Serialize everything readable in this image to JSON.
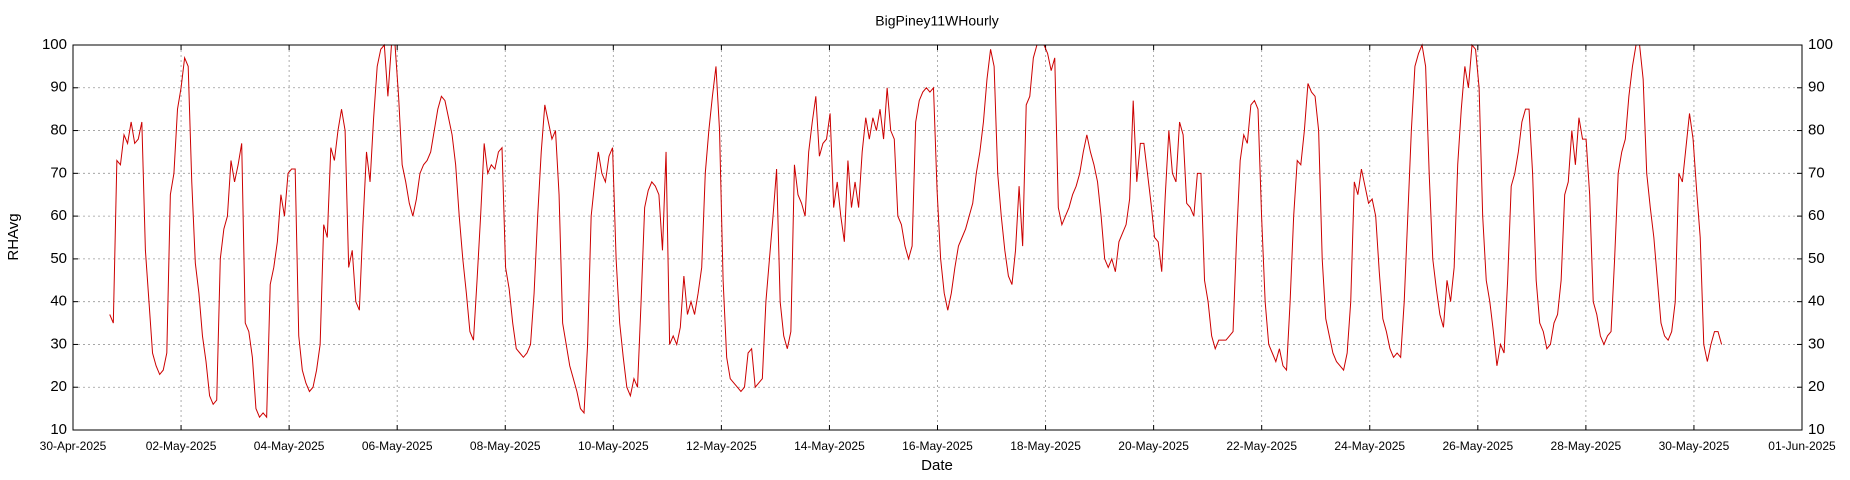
{
  "chart_data": {
    "type": "line",
    "title": "BigPiney11WHourly",
    "x_label": "Date",
    "y_label": "RHAvg",
    "color": "#cc0000",
    "grid": true,
    "xlim": [
      0,
      32
    ],
    "xticks": [
      {
        "value": 0,
        "label": "30-Apr-2025"
      },
      {
        "value": 2,
        "label": "02-May-2025"
      },
      {
        "value": 4,
        "label": "04-May-2025"
      },
      {
        "value": 6,
        "label": "06-May-2025"
      },
      {
        "value": 8,
        "label": "08-May-2025"
      },
      {
        "value": 10,
        "label": "10-May-2025"
      },
      {
        "value": 12,
        "label": "12-May-2025"
      },
      {
        "value": 14,
        "label": "14-May-2025"
      },
      {
        "value": 16,
        "label": "16-May-2025"
      },
      {
        "value": 18,
        "label": "18-May-2025"
      },
      {
        "value": 20,
        "label": "20-May-2025"
      },
      {
        "value": 22,
        "label": "22-May-2025"
      },
      {
        "value": 24,
        "label": "24-May-2025"
      },
      {
        "value": 26,
        "label": "26-May-2025"
      },
      {
        "value": 28,
        "label": "28-May-2025"
      },
      {
        "value": 30,
        "label": "30-May-2025"
      },
      {
        "value": 32,
        "label": "01-Jun-2025"
      }
    ],
    "ylim": [
      10,
      100
    ],
    "yticks": [
      10,
      20,
      30,
      40,
      50,
      60,
      70,
      80,
      90,
      100
    ],
    "x": [
      0.68,
      0.746,
      0.812,
      0.878,
      0.944,
      1.01,
      1.076,
      1.142,
      1.208,
      1.274,
      1.34,
      1.406,
      1.472,
      1.538,
      1.604,
      1.67,
      1.736,
      1.802,
      1.868,
      1.934,
      2,
      2.066,
      2.132,
      2.198,
      2.264,
      2.33,
      2.396,
      2.462,
      2.528,
      2.594,
      2.66,
      2.726,
      2.792,
      2.858,
      2.924,
      2.99,
      3.056,
      3.122,
      3.188,
      3.254,
      3.32,
      3.386,
      3.452,
      3.518,
      3.584,
      3.65,
      3.716,
      3.782,
      3.848,
      3.914,
      3.98,
      4.046,
      4.112,
      4.178,
      4.244,
      4.31,
      4.376,
      4.442,
      4.508,
      4.574,
      4.64,
      4.706,
      4.772,
      4.838,
      4.904,
      4.97,
      5.036,
      5.102,
      5.168,
      5.234,
      5.3,
      5.366,
      5.432,
      5.498,
      5.564,
      5.63,
      5.696,
      5.762,
      5.828,
      5.894,
      5.96,
      6.026,
      6.092,
      6.158,
      6.224,
      6.29,
      6.356,
      6.422,
      6.488,
      6.554,
      6.62,
      6.686,
      6.752,
      6.818,
      6.884,
      6.95,
      7.016,
      7.082,
      7.148,
      7.214,
      7.28,
      7.346,
      7.412,
      7.478,
      7.544,
      7.61,
      7.676,
      7.742,
      7.808,
      7.874,
      7.94,
      8.006,
      8.072,
      8.138,
      8.204,
      8.27,
      8.336,
      8.402,
      8.468,
      8.534,
      8.6,
      8.666,
      8.732,
      8.798,
      8.864,
      8.93,
      8.996,
      9.062,
      9.128,
      9.194,
      9.26,
      9.326,
      9.392,
      9.458,
      9.524,
      9.59,
      9.656,
      9.722,
      9.788,
      9.854,
      9.92,
      9.986,
      10.052,
      10.118,
      10.184,
      10.25,
      10.316,
      10.382,
      10.448,
      10.514,
      10.58,
      10.646,
      10.712,
      10.778,
      10.844,
      10.91,
      10.976,
      11.042,
      11.108,
      11.174,
      11.24,
      11.306,
      11.372,
      11.438,
      11.504,
      11.57,
      11.636,
      11.702,
      11.768,
      11.834,
      11.9,
      11.966,
      12.032,
      12.098,
      12.164,
      12.23,
      12.296,
      12.362,
      12.428,
      12.494,
      12.56,
      12.626,
      12.692,
      12.758,
      12.824,
      12.89,
      12.956,
      13.022,
      13.088,
      13.154,
      13.22,
      13.286,
      13.352,
      13.418,
      13.484,
      13.55,
      13.616,
      13.682,
      13.748,
      13.814,
      13.88,
      13.946,
      14.012,
      14.078,
      14.144,
      14.21,
      14.276,
      14.342,
      14.408,
      14.474,
      14.54,
      14.606,
      14.672,
      14.738,
      14.804,
      14.87,
      14.936,
      15.002,
      15.068,
      15.134,
      15.2,
      15.266,
      15.332,
      15.398,
      15.464,
      15.53,
      15.596,
      15.662,
      15.728,
      15.794,
      15.86,
      15.926,
      15.992,
      16.058,
      16.124,
      16.19,
      16.256,
      16.322,
      16.388,
      16.454,
      16.52,
      16.586,
      16.652,
      16.718,
      16.784,
      16.85,
      16.916,
      16.982,
      17.048,
      17.114,
      17.18,
      17.246,
      17.312,
      17.378,
      17.444,
      17.51,
      17.576,
      17.642,
      17.708,
      17.774,
      17.84,
      17.906,
      17.972,
      18.038,
      18.104,
      18.17,
      18.236,
      18.302,
      18.368,
      18.434,
      18.5,
      18.566,
      18.632,
      18.698,
      18.764,
      18.83,
      18.896,
      18.962,
      19.028,
      19.094,
      19.16,
      19.226,
      19.292,
      19.358,
      19.424,
      19.49,
      19.556,
      19.622,
      19.688,
      19.754,
      19.82,
      19.886,
      19.952,
      20.018,
      20.084,
      20.15,
      20.216,
      20.282,
      20.348,
      20.414,
      20.48,
      20.546,
      20.612,
      20.678,
      20.744,
      20.81,
      20.876,
      20.942,
      21.008,
      21.074,
      21.14,
      21.206,
      21.272,
      21.338,
      21.404,
      21.47,
      21.536,
      21.602,
      21.668,
      21.734,
      21.8,
      21.866,
      21.932,
      21.998,
      22.064,
      22.13,
      22.196,
      22.262,
      22.328,
      22.394,
      22.46,
      22.526,
      22.592,
      22.658,
      22.724,
      22.79,
      22.856,
      22.922,
      22.988,
      23.054,
      23.12,
      23.186,
      23.252,
      23.318,
      23.384,
      23.45,
      23.516,
      23.582,
      23.648,
      23.714,
      23.78,
      23.846,
      23.912,
      23.978,
      24.044,
      24.11,
      24.176,
      24.242,
      24.308,
      24.374,
      24.44,
      24.506,
      24.572,
      24.638,
      24.704,
      24.77,
      24.836,
      24.902,
      24.968,
      25.034,
      25.1,
      25.166,
      25.232,
      25.298,
      25.364,
      25.43,
      25.496,
      25.562,
      25.628,
      25.694,
      25.76,
      25.826,
      25.892,
      25.958,
      26.024,
      26.09,
      26.156,
      26.222,
      26.288,
      26.354,
      26.42,
      26.486,
      26.552,
      26.618,
      26.684,
      26.75,
      26.816,
      26.882,
      26.948,
      27.014,
      27.08,
      27.146,
      27.212,
      27.278,
      27.344,
      27.41,
      27.476,
      27.542,
      27.608,
      27.674,
      27.74,
      27.806,
      27.872,
      27.938,
      28.004,
      28.07,
      28.136,
      28.202,
      28.268,
      28.334,
      28.4,
      28.466,
      28.532,
      28.598,
      28.664,
      28.73,
      28.796,
      28.862,
      28.928,
      28.994,
      29.06,
      29.126,
      29.192,
      29.258,
      29.324,
      29.39,
      29.456,
      29.522,
      29.588,
      29.654,
      29.72,
      29.786,
      29.852,
      29.918,
      29.984,
      30.05,
      30.116,
      30.182,
      30.248,
      30.314,
      30.38,
      30.446,
      30.512
    ],
    "values": [
      37,
      35,
      73,
      72,
      79,
      77,
      82,
      77,
      78,
      82,
      52,
      40,
      28,
      25,
      23,
      24,
      28,
      65,
      70,
      85,
      90,
      97,
      95,
      68,
      49,
      42,
      32,
      26,
      18,
      16,
      17,
      50,
      57,
      60,
      73,
      68,
      72,
      77,
      35,
      33,
      27,
      15,
      13,
      14,
      13,
      44,
      48,
      54,
      65,
      60,
      70,
      71,
      71,
      32,
      24,
      21,
      19,
      20,
      24,
      30,
      58,
      55,
      76,
      73,
      80,
      85,
      80,
      48,
      52,
      40,
      38,
      58,
      75,
      68,
      83,
      95,
      99,
      100,
      88,
      100,
      100,
      88,
      72,
      68,
      63,
      60,
      64,
      70,
      72,
      73,
      75,
      80,
      85,
      88,
      87,
      83,
      79,
      72,
      60,
      50,
      42,
      33,
      31,
      45,
      60,
      77,
      70,
      72,
      71,
      75,
      76,
      48,
      43,
      35,
      29,
      28,
      27,
      28,
      30,
      42,
      60,
      75,
      86,
      82,
      78,
      80,
      65,
      35,
      30,
      25,
      22,
      19,
      15,
      14,
      30,
      60,
      68,
      75,
      70,
      68,
      74,
      76,
      50,
      35,
      27,
      20,
      18,
      22,
      20,
      40,
      62,
      66,
      68,
      67,
      65,
      52,
      75,
      30,
      32,
      30,
      34,
      46,
      37,
      40,
      37,
      42,
      48,
      70,
      80,
      88,
      95,
      80,
      45,
      27,
      22,
      21,
      20,
      19,
      20,
      28,
      29,
      20,
      21,
      22,
      40,
      50,
      60,
      71,
      40,
      32,
      29,
      33,
      72,
      65,
      63,
      60,
      75,
      82,
      88,
      74,
      77,
      78,
      84,
      62,
      68,
      60,
      54,
      73,
      62,
      68,
      62,
      75,
      83,
      78,
      83,
      80,
      85,
      78,
      90,
      80,
      78,
      60,
      58,
      53,
      50,
      53,
      82,
      87,
      89,
      90,
      89,
      90,
      66,
      50,
      42,
      38,
      42,
      48,
      53,
      55,
      57,
      60,
      63,
      70,
      75,
      82,
      92,
      99,
      95,
      70,
      60,
      52,
      46,
      44,
      52,
      67,
      53,
      86,
      88,
      97,
      100,
      100,
      100,
      98,
      94,
      97,
      62,
      58,
      60,
      62,
      65,
      67,
      70,
      75,
      79,
      75,
      72,
      68,
      60,
      50,
      48,
      50,
      47,
      54,
      56,
      58,
      64,
      87,
      68,
      77,
      77,
      70,
      63,
      55,
      54,
      47,
      65,
      80,
      70,
      68,
      82,
      79,
      63,
      62,
      60,
      70,
      70,
      45,
      40,
      32,
      29,
      31,
      31,
      31,
      32,
      33,
      55,
      73,
      79,
      77,
      86,
      87,
      85,
      60,
      40,
      30,
      28,
      26,
      29,
      25,
      24,
      40,
      60,
      73,
      72,
      80,
      91,
      89,
      88,
      80,
      50,
      36,
      32,
      28,
      26,
      25,
      24,
      28,
      40,
      68,
      65,
      71,
      67,
      63,
      64,
      60,
      47,
      36,
      33,
      29,
      27,
      28,
      27,
      40,
      60,
      80,
      95,
      98,
      100,
      95,
      70,
      50,
      43,
      37,
      34,
      45,
      40,
      48,
      72,
      85,
      95,
      90,
      100,
      99,
      90,
      60,
      45,
      40,
      33,
      25,
      30,
      28,
      45,
      67,
      70,
      75,
      82,
      85,
      85,
      70,
      45,
      35,
      33,
      29,
      30,
      35,
      37,
      45,
      65,
      68,
      80,
      72,
      83,
      78,
      78,
      65,
      40,
      37,
      32,
      30,
      32,
      33,
      50,
      70,
      75,
      78,
      88,
      95,
      100,
      100,
      92,
      70,
      62,
      55,
      45,
      35,
      32,
      31,
      33,
      40,
      70,
      68,
      76,
      84,
      78,
      66,
      55,
      30,
      26,
      30,
      33,
      33,
      30
    ]
  }
}
